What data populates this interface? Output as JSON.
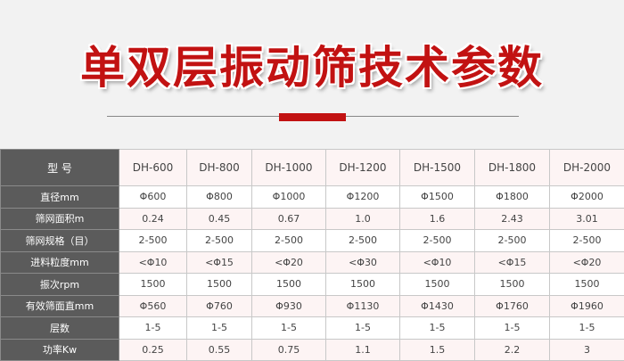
{
  "title": "单双层振动筛技术参数",
  "colors": {
    "accent": "#c21212",
    "label_bg": "#5b5b5b",
    "background": "#f2f2f2"
  },
  "table": {
    "header_label": "型 号",
    "models": [
      "DH-600",
      "DH-800",
      "DH-1000",
      "DH-1200",
      "DH-1500",
      "DH-1800",
      "DH-2000"
    ],
    "rows": [
      {
        "label": "直径mm",
        "values": [
          "Φ600",
          "Φ800",
          "Φ1000",
          "Φ1200",
          "Φ1500",
          "Φ1800",
          "Φ2000"
        ]
      },
      {
        "label": "筛网面积m",
        "values": [
          "0.24",
          "0.45",
          "0.67",
          "1.0",
          "1.6",
          "2.43",
          "3.01"
        ]
      },
      {
        "label": "筛网规格（目）",
        "values": [
          "2-500",
          "2-500",
          "2-500",
          "2-500",
          "2-500",
          "2-500",
          "2-500"
        ]
      },
      {
        "label": "进料粒度mm",
        "values": [
          "<Φ10",
          "<Φ15",
          "<Φ20",
          "<Φ30",
          "<Φ10",
          "<Φ15",
          "<Φ20"
        ]
      },
      {
        "label": "振次rpm",
        "values": [
          "1500",
          "1500",
          "1500",
          "1500",
          "1500",
          "1500",
          "1500"
        ]
      },
      {
        "label": "有效筛面直mm",
        "values": [
          "Φ560",
          "Φ760",
          "Φ930",
          "Φ1130",
          "Φ1430",
          "Φ1760",
          "Φ1960"
        ]
      },
      {
        "label": "层数",
        "values": [
          "1-5",
          "1-5",
          "1-5",
          "1-5",
          "1-5",
          "1-5",
          "1-5"
        ]
      },
      {
        "label": "功率Kw",
        "values": [
          "0.25",
          "0.55",
          "0.75",
          "1.1",
          "1.5",
          "2.2",
          "3"
        ]
      }
    ]
  }
}
